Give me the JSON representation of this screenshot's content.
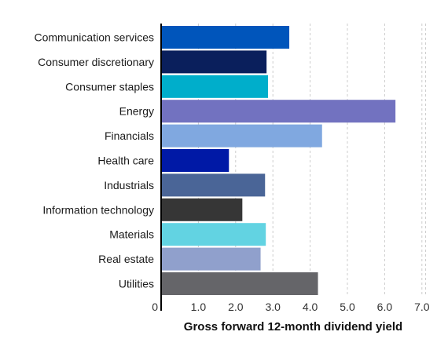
{
  "chart_data": {
    "type": "bar",
    "orientation": "horizontal",
    "categories": [
      "Communication services",
      "Consumer discretionary",
      "Consumer staples",
      "Energy",
      "Financials",
      "Health care",
      "Industrials",
      "Information technology",
      "Materials",
      "Real estate",
      "Utilities"
    ],
    "values": [
      3.44,
      2.83,
      2.87,
      6.29,
      4.32,
      1.82,
      2.79,
      2.18,
      2.81,
      2.67,
      4.21
    ],
    "colors": [
      "#0055bb",
      "#0a1f5c",
      "#00aecb",
      "#7272c0",
      "#80a8e0",
      "#0019a6",
      "#4a6597",
      "#363636",
      "#62d3e2",
      "#90a0cc",
      "#656569"
    ],
    "xlabel": "Gross forward 12-month dividend yield",
    "ylabel": "",
    "xlim": [
      0,
      7.5
    ],
    "xticks": [
      0,
      1,
      2,
      3,
      4,
      5,
      6,
      7
    ],
    "xtick_labels": [
      "0",
      "1.0",
      "2.0",
      "3.0",
      "4.0",
      "5.0",
      "6.0",
      "7.0"
    ],
    "grid": "vertical-dashed"
  }
}
